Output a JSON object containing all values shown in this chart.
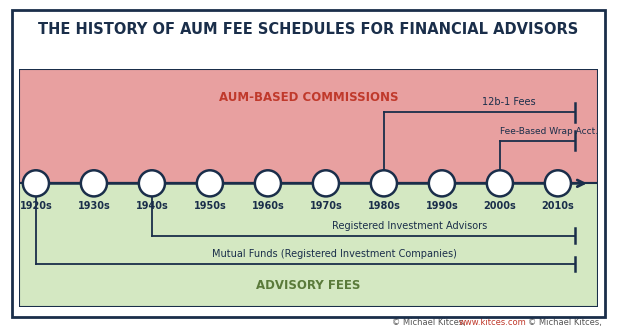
{
  "title": "THE HISTORY OF AUM FEE SCHEDULES FOR FINANCIAL ADVISORS",
  "title_fontsize": 10.5,
  "title_color": "#1a2e4a",
  "background_outer": "#ffffff",
  "background_top": "#e8a0a0",
  "background_bottom": "#d4e8c2",
  "border_color": "#1a2e4a",
  "timeline_color": "#1a2e4a",
  "decades": [
    "1920s",
    "1930s",
    "1940s",
    "1950s",
    "1960s",
    "1970s",
    "1980s",
    "1990s",
    "2000s",
    "2010s"
  ],
  "aum_label": "AUM-BASED COMMISSIONS",
  "aum_label_color": "#c0392b",
  "advisory_label": "ADVISORY FEES",
  "advisory_label_color": "#5a7a3a",
  "annotation_color": "#1a2e4a",
  "annotation_fontsize": 7.0,
  "credit": "© Michael Kitces, ",
  "credit_url": "www.kitces.com",
  "credit_color": "#555555",
  "credit_url_color": "#c0392b"
}
